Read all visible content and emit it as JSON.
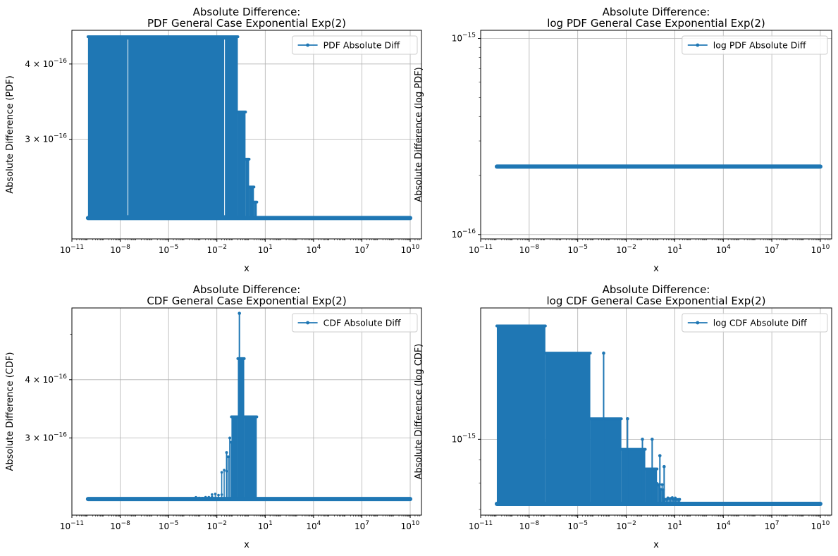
{
  "chart_data": [
    {
      "type": "line",
      "title": "Absolute Difference:",
      "subtitle": "PDF General Case Exponential Exp(2)",
      "xlabel": "x",
      "ylabel": "Absolute Difference (PDF)",
      "xscale": "log",
      "yscale": "log",
      "xlim": [
        1e-11,
        50000000000.0
      ],
      "ylim": [
        2.05e-16,
        4.55e-16
      ],
      "xticks": [
        "10^{-11}",
        "10^{-8}",
        "10^{-5}",
        "10^{-2}",
        "10^{1}",
        "10^{4}",
        "10^{7}",
        "10^{10}"
      ],
      "yticks": [
        {
          "value": 3e-16,
          "label": "3 × 10^{-16}"
        },
        {
          "value": 4e-16,
          "label": "4 × 10^{-16}"
        }
      ],
      "grid": true,
      "legend_position": "top-right",
      "series": [
        {
          "name": "PDF Absolute Diff",
          "color": "#1f77b4",
          "x_range": [
            1e-10,
            10000000000.0
          ],
          "baseline": 2.22e-16,
          "spikes": [
            {
              "x_from": 1e-10,
              "x_to": 0.2,
              "y": 4.44e-16,
              "density": "dense"
            },
            {
              "x_from": 0.2,
              "x_to": 0.6,
              "y": 3.33e-16,
              "density": "dense"
            },
            {
              "x_from": 0.6,
              "x_to": 1.0,
              "y": 2.78e-16,
              "density": "dense"
            },
            {
              "x_from": 1.0,
              "x_to": 2.0,
              "y": 2.5e-16,
              "density": "dense"
            },
            {
              "x_from": 2.0,
              "x_to": 3.0,
              "y": 2.36e-16,
              "density": "dense"
            }
          ]
        }
      ]
    },
    {
      "type": "line",
      "title": "Absolute Difference:",
      "subtitle": "log PDF General Case Exponential Exp(2)",
      "xlabel": "x",
      "ylabel": "Absolute Difference (log PDF)",
      "xscale": "log",
      "yscale": "log",
      "xlim": [
        1e-11,
        50000000000.0
      ],
      "ylim": [
        9.5e-17,
        1.1e-15
      ],
      "xticks": [
        "10^{-11}",
        "10^{-8}",
        "10^{-5}",
        "10^{-2}",
        "10^{1}",
        "10^{4}",
        "10^{7}",
        "10^{10}"
      ],
      "yticks": [
        {
          "value": 1e-16,
          "label": "10^{-16}"
        },
        {
          "value": 1e-15,
          "label": "10^{-15}"
        }
      ],
      "grid": true,
      "legend_position": "top-right",
      "series": [
        {
          "name": "log PDF Absolute Diff",
          "color": "#1f77b4",
          "x_range": [
            1e-10,
            10000000000.0
          ],
          "baseline": 2.22e-16,
          "spikes": []
        }
      ]
    },
    {
      "type": "line",
      "title": "Absolute Difference:",
      "subtitle": "CDF General Case Exponential Exp(2)",
      "xlabel": "x",
      "ylabel": "Absolute Difference (CDF)",
      "xscale": "log",
      "yscale": "log",
      "xlim": [
        1e-11,
        50000000000.0
      ],
      "ylim": [
        2.05e-16,
        5.7e-16
      ],
      "xticks": [
        "10^{-11}",
        "10^{-8}",
        "10^{-5}",
        "10^{-2}",
        "10^{1}",
        "10^{4}",
        "10^{7}",
        "10^{10}"
      ],
      "yticks": [
        {
          "value": 3e-16,
          "label": "3 × 10^{-16}"
        },
        {
          "value": 4e-16,
          "label": "4 × 10^{-16}"
        }
      ],
      "grid": true,
      "legend_position": "top-right",
      "series": [
        {
          "name": "CDF Absolute Diff",
          "color": "#1f77b4",
          "x_range": [
            1e-10,
            10000000000.0
          ],
          "baseline": 2.22e-16,
          "spikes": [
            {
              "x_from": 0.0005,
              "x_to": 0.005,
              "y": 2.24e-16,
              "density": "sparse"
            },
            {
              "x_from": 0.005,
              "x_to": 0.02,
              "y": 2.3e-16,
              "density": "sparse"
            },
            {
              "x_from": 0.02,
              "x_to": 0.04,
              "y": 2.6e-16,
              "density": "sparse"
            },
            {
              "x_from": 0.04,
              "x_to": 0.08,
              "y": 3.05e-16,
              "density": "medium"
            },
            {
              "x_from": 0.08,
              "x_to": 0.2,
              "y": 3.33e-16,
              "density": "dense"
            },
            {
              "x_from": 0.2,
              "x_to": 0.5,
              "y": 4.44e-16,
              "density": "dense"
            },
            {
              "x_from": 0.5,
              "x_to": 3.0,
              "y": 3.33e-16,
              "density": "dense"
            },
            {
              "x_from": 0.25,
              "x_to": 0.26,
              "y": 5.55e-16,
              "density": "single"
            }
          ]
        }
      ]
    },
    {
      "type": "line",
      "title": "Absolute Difference:",
      "subtitle": "log CDF General Case Exponential Exp(2)",
      "xlabel": "x",
      "ylabel": "Absolute Difference (log CDF)",
      "xscale": "log",
      "yscale": "log",
      "xlim": [
        1e-11,
        50000000000.0
      ],
      "ylim": [
        6.8e-16,
        1.95e-15
      ],
      "xticks": [
        "10^{-11}",
        "10^{-8}",
        "10^{-5}",
        "10^{-2}",
        "10^{1}",
        "10^{4}",
        "10^{7}",
        "10^{10}"
      ],
      "yticks": [
        {
          "value": 1e-15,
          "label": "10^{-15}"
        }
      ],
      "grid": true,
      "legend_position": "top-right",
      "series": [
        {
          "name": "log CDF Absolute Diff",
          "color": "#1f77b4",
          "x_range": [
            1e-10,
            10000000000.0
          ],
          "baseline": 7.2e-16,
          "spikes": [
            {
              "x_from": 1e-10,
              "x_to": 1e-07,
              "y": 1.78e-15,
              "density": "dense"
            },
            {
              "x_from": 1e-07,
              "x_to": 6e-05,
              "y": 1.55e-15,
              "density": "dense"
            },
            {
              "x_from": 6e-05,
              "x_to": 0.005,
              "y": 1.11e-15,
              "density": "dense"
            },
            {
              "x_from": 0.005,
              "x_to": 0.15,
              "y": 9.5e-16,
              "density": "dense"
            },
            {
              "x_from": 0.15,
              "x_to": 0.8,
              "y": 8.6e-16,
              "density": "dense"
            },
            {
              "x_from": 0.8,
              "x_to": 2.0,
              "y": 8e-16,
              "density": "medium"
            },
            {
              "x_from": 2.0,
              "x_to": 20.0,
              "y": 7.45e-16,
              "density": "medium"
            },
            {
              "x_from": 0.0004,
              "x_to": 0.00041,
              "y": 1.55e-15,
              "density": "single"
            },
            {
              "x_from": 0.012,
              "x_to": 0.0121,
              "y": 1.11e-15,
              "density": "single"
            },
            {
              "x_from": 0.1,
              "x_to": 0.101,
              "y": 1e-15,
              "density": "single"
            },
            {
              "x_from": 0.4,
              "x_to": 0.401,
              "y": 1e-15,
              "density": "single"
            },
            {
              "x_from": 1.2,
              "x_to": 1.201,
              "y": 9.2e-16,
              "density": "single"
            },
            {
              "x_from": 2.2,
              "x_to": 2.201,
              "y": 8.7e-16,
              "density": "single"
            }
          ]
        }
      ]
    }
  ]
}
